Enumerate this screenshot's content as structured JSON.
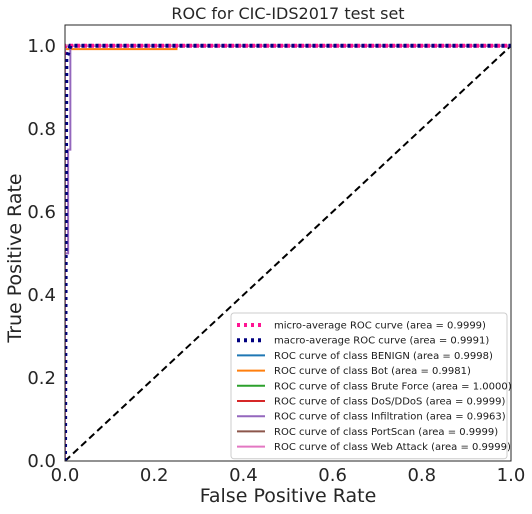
{
  "chart_data": {
    "type": "line",
    "title": "ROC for CIC-IDS2017 test set",
    "xlabel": "False Positive Rate",
    "ylabel": "True Positive Rate",
    "xlim": [
      0.0,
      1.0
    ],
    "ylim": [
      0.0,
      1.05
    ],
    "xticks": [
      "0.0",
      "0.2",
      "0.4",
      "0.6",
      "0.8",
      "1.0"
    ],
    "yticks": [
      "0.0",
      "0.2",
      "0.4",
      "0.6",
      "0.8",
      "1.0"
    ],
    "grid": false,
    "legend_position": "lower-right",
    "series": [
      {
        "name": "micro-average ROC curve (area = 0.9999)",
        "color": "#ff1493",
        "dash": "dotted-thick",
        "x": [
          0.0,
          0.0,
          0.001,
          1.0
        ],
        "y": [
          0.0,
          0.999,
          1.0,
          1.0
        ]
      },
      {
        "name": "macro-average ROC curve (area = 0.9991)",
        "color": "#000080",
        "dash": "dotted-thick",
        "x": [
          0.0,
          0.003,
          0.008,
          0.012,
          1.0
        ],
        "y": [
          0.0,
          0.97,
          0.985,
          1.0,
          1.0
        ]
      },
      {
        "name": "ROC curve of class BENIGN (area = 0.9998)",
        "color": "#1f77b4",
        "dash": "solid",
        "x": [
          0.0,
          0.0,
          0.002,
          1.0
        ],
        "y": [
          0.0,
          0.997,
          1.0,
          1.0
        ]
      },
      {
        "name": "ROC curve of class Bot (area = 0.9981)",
        "color": "#ff7f0e",
        "dash": "solid",
        "x": [
          0.0,
          0.0,
          0.25,
          0.25,
          1.0
        ],
        "y": [
          0.0,
          0.992,
          0.992,
          1.0,
          1.0
        ]
      },
      {
        "name": "ROC curve of class Brute Force (area = 1.0000)",
        "color": "#2ca02c",
        "dash": "solid",
        "x": [
          0.0,
          0.0,
          1.0
        ],
        "y": [
          0.0,
          1.0,
          1.0
        ]
      },
      {
        "name": "ROC curve of class DoS/DDoS (area = 0.9999)",
        "color": "#d62728",
        "dash": "solid",
        "x": [
          0.0,
          0.0,
          0.001,
          1.0
        ],
        "y": [
          0.0,
          0.998,
          1.0,
          1.0
        ]
      },
      {
        "name": "ROC curve of class Infiltration (area = 0.9963)",
        "color": "#9467bd",
        "dash": "solid",
        "x": [
          0.0,
          0.0,
          0.007,
          0.007,
          0.012,
          0.012,
          1.0
        ],
        "y": [
          0.0,
          0.5,
          0.5,
          0.75,
          0.75,
          1.0,
          1.0
        ]
      },
      {
        "name": "ROC curve of class PortScan (area = 0.9999)",
        "color": "#8c564b",
        "dash": "solid",
        "x": [
          0.0,
          0.0,
          0.001,
          1.0
        ],
        "y": [
          0.0,
          0.999,
          1.0,
          1.0
        ]
      },
      {
        "name": "ROC curve of class Web Attack (area = 0.9999)",
        "color": "#e377c2",
        "dash": "solid",
        "x": [
          0.0,
          0.0,
          0.001,
          1.0
        ],
        "y": [
          0.0,
          0.999,
          1.0,
          1.0
        ]
      }
    ],
    "reference_line": {
      "x": [
        0.0,
        1.0
      ],
      "y": [
        0.0,
        1.0
      ],
      "color": "#000000",
      "dash": "dashed"
    }
  }
}
